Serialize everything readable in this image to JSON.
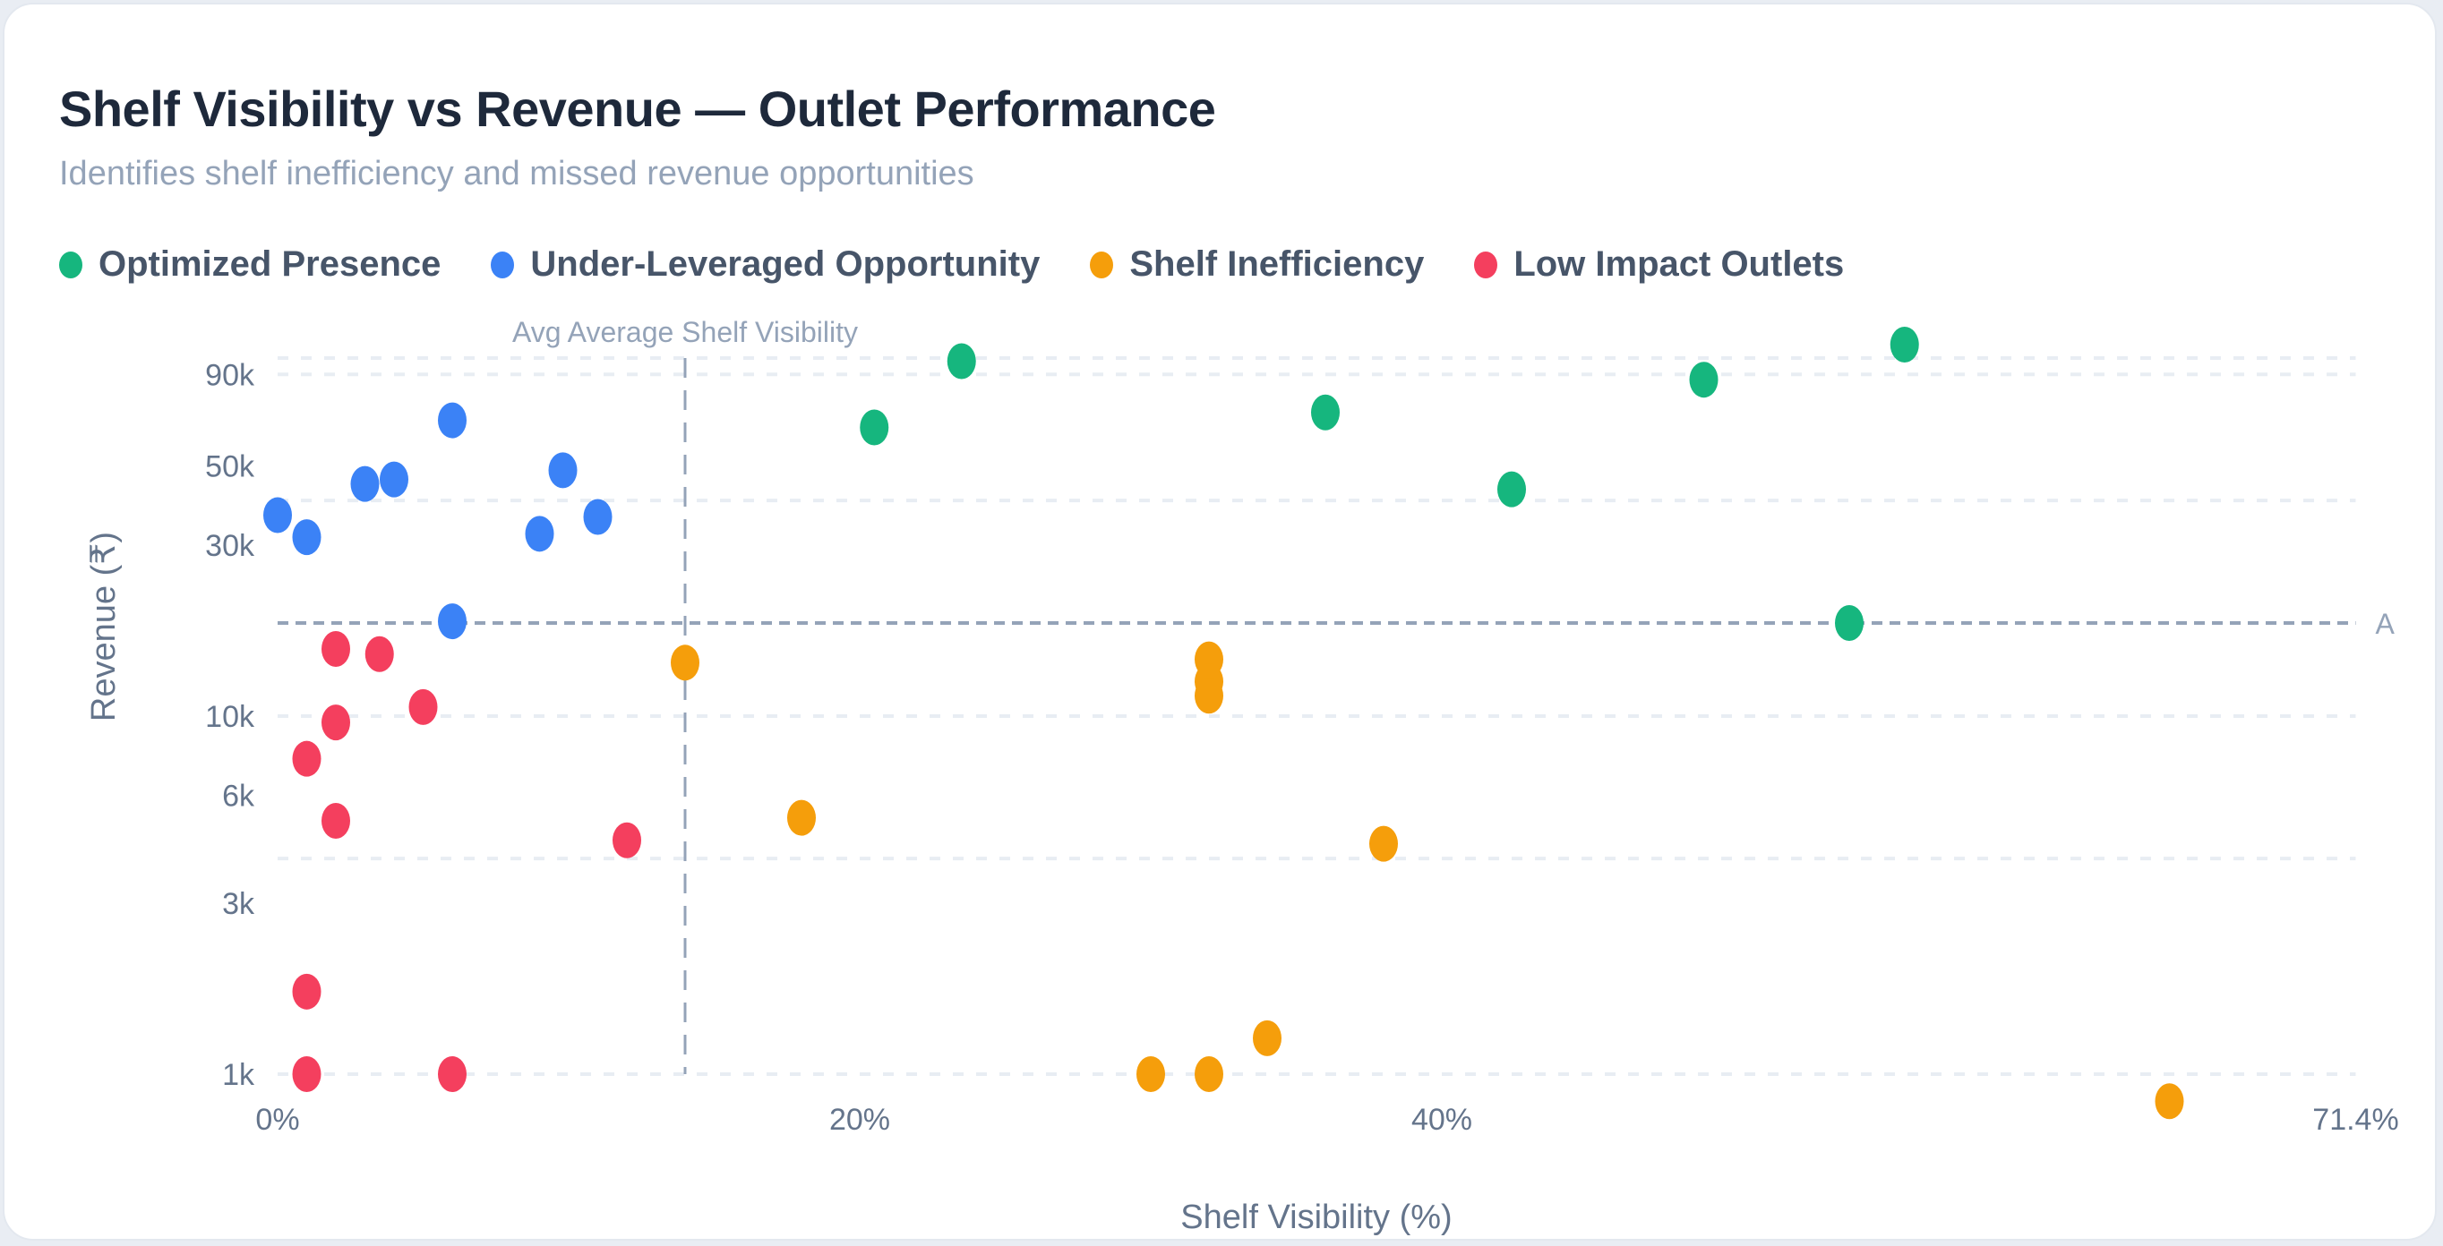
{
  "header": {
    "title": "Shelf Visibility vs Revenue — Outlet Performance",
    "subtitle": "Identifies shelf inefficiency and missed revenue opportunities"
  },
  "legend": [
    {
      "label": "Optimized Presence",
      "color": "#16b67e"
    },
    {
      "label": "Under-Leveraged Opportunity",
      "color": "#3b82f6"
    },
    {
      "label": "Shelf Inefficiency",
      "color": "#f59e0b"
    },
    {
      "label": "Low Impact Outlets",
      "color": "#f43f5e"
    }
  ],
  "chart_data": {
    "type": "scatter",
    "title": "Shelf Visibility vs Revenue — Outlet Performance",
    "subtitle": "Identifies shelf inefficiency and missed revenue opportunities",
    "xlabel": "Shelf Visibility (%)",
    "ylabel": "Revenue (₹)",
    "xlim": [
      0,
      71.4
    ],
    "ylim": [
      800,
      110000
    ],
    "yscale": "log",
    "x_ticks": [
      {
        "value": 0,
        "label": "0%"
      },
      {
        "value": 20,
        "label": "20%"
      },
      {
        "value": 40,
        "label": "40%"
      },
      {
        "value": 71.4,
        "label": "71.4%"
      }
    ],
    "y_ticks": [
      {
        "value": 1000,
        "label": "1k"
      },
      {
        "value": 3000,
        "label": "3k"
      },
      {
        "value": 6000,
        "label": "6k"
      },
      {
        "value": 10000,
        "label": "10k"
      },
      {
        "value": 30000,
        "label": "30k"
      },
      {
        "value": 50000,
        "label": "50k"
      },
      {
        "value": 90000,
        "label": "90k"
      }
    ],
    "gridlines_y": [
      1000,
      4000,
      10000,
      40000,
      90000,
      100000
    ],
    "grid": true,
    "legend_position": "top-left",
    "reference_lines": {
      "avg_x": {
        "value": 14.0,
        "label": "Avg Average Shelf Visibility"
      },
      "avg_y": {
        "value": 18200,
        "label": "A"
      }
    },
    "series": [
      {
        "name": "Optimized Presence",
        "color": "#16b67e",
        "points": [
          {
            "x": 23.5,
            "y": 98000
          },
          {
            "x": 20.5,
            "y": 64000
          },
          {
            "x": 36.0,
            "y": 70500
          },
          {
            "x": 42.4,
            "y": 43000
          },
          {
            "x": 49.0,
            "y": 87000
          },
          {
            "x": 55.9,
            "y": 109000
          },
          {
            "x": 54.0,
            "y": 18200
          }
        ]
      },
      {
        "name": "Under-Leveraged Opportunity",
        "color": "#3b82f6",
        "points": [
          {
            "x": 0.0,
            "y": 36400
          },
          {
            "x": 1.0,
            "y": 31600
          },
          {
            "x": 3.0,
            "y": 44500
          },
          {
            "x": 4.0,
            "y": 45800
          },
          {
            "x": 6.0,
            "y": 67000
          },
          {
            "x": 9.0,
            "y": 32300
          },
          {
            "x": 9.8,
            "y": 48600
          },
          {
            "x": 11.0,
            "y": 36000
          },
          {
            "x": 6.0,
            "y": 18400
          }
        ]
      },
      {
        "name": "Shelf Inefficiency",
        "color": "#f59e0b",
        "points": [
          {
            "x": 14.0,
            "y": 14100
          },
          {
            "x": 32.0,
            "y": 14400
          },
          {
            "x": 32.0,
            "y": 12500
          },
          {
            "x": 32.0,
            "y": 11400
          },
          {
            "x": 18.0,
            "y": 5200
          },
          {
            "x": 38.0,
            "y": 4400
          },
          {
            "x": 34.0,
            "y": 1260
          },
          {
            "x": 30.0,
            "y": 1000
          },
          {
            "x": 32.0,
            "y": 1000
          },
          {
            "x": 65.0,
            "y": 840
          }
        ]
      },
      {
        "name": "Low Impact Outlets",
        "color": "#f43f5e",
        "points": [
          {
            "x": 2.0,
            "y": 15400
          },
          {
            "x": 3.5,
            "y": 14900
          },
          {
            "x": 5.0,
            "y": 10600
          },
          {
            "x": 2.0,
            "y": 9600
          },
          {
            "x": 1.0,
            "y": 7600
          },
          {
            "x": 2.0,
            "y": 5100
          },
          {
            "x": 12.0,
            "y": 4500
          },
          {
            "x": 1.0,
            "y": 1700
          },
          {
            "x": 1.0,
            "y": 1000
          },
          {
            "x": 6.0,
            "y": 1000
          }
        ]
      }
    ]
  }
}
